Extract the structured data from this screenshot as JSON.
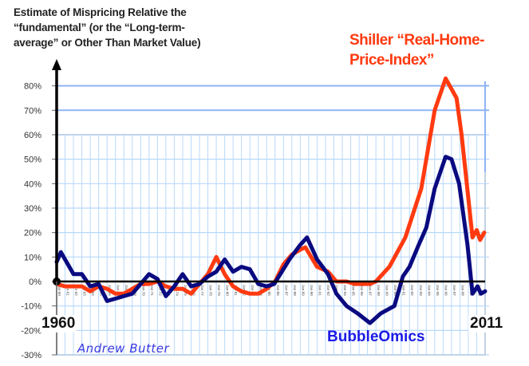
{
  "chart_data": {
    "type": "line",
    "title": "Estimate of Mispricing Relative the “fundamental” (or the “Long-term-average” or Other Than Market Value)",
    "title_lines": [
      "Estimate of Mispricing Relative the",
      "“fundamental” (or the “Long-term-",
      "average” or Other Than Market Value)"
    ],
    "xlabel": "",
    "ylabel": "",
    "x_start_label": "1960",
    "x_end_label": "2011",
    "xlim": [
      1960,
      2011
    ],
    "ylim": [
      -30,
      80
    ],
    "yticks": [
      -30,
      -20,
      -10,
      0,
      10,
      20,
      30,
      40,
      50,
      60,
      70,
      80
    ],
    "ytick_labels": [
      "-30%",
      "-20%",
      "-10%",
      "0%",
      "10%",
      "20%",
      "30%",
      "40%",
      "50%",
      "60%",
      "70%",
      "80%"
    ],
    "xtick_labels": [
      "Jan-60",
      "Jan-61",
      "Jan-62",
      "Jan-63",
      "Jan-64",
      "Jan-65",
      "Jan-66",
      "Jan-67",
      "Jan-68",
      "Jan-69",
      "Jan-70",
      "Jan-71",
      "Jan-72",
      "Jan-73",
      "Jan-74",
      "Jan-75",
      "Jan-76",
      "Jan-77",
      "Jan-78",
      "Jan-79",
      "Jan-80",
      "Jan-81",
      "Jan-82",
      "Jan-83",
      "Jan-84",
      "Jan-85",
      "Jan-86",
      "Jan-87",
      "Jan-88",
      "Jan-89",
      "Jan-90",
      "Jan-91",
      "Jan-92",
      "Jan-93",
      "Jan-94",
      "Jan-95",
      "Jan-96",
      "Jan-97",
      "Jan-98",
      "Jan-99",
      "Jan-00",
      "Jan-01",
      "Jan-02",
      "Jan-03",
      "Jan-04",
      "Jan-05",
      "Jan-06",
      "Jan-07",
      "Jan-08",
      "Jan-09",
      "Jan-10"
    ],
    "grid": true,
    "series": [
      {
        "name": "Shiller “Real-Home-Price-Index”",
        "legend_lines": [
          "Shiller “Real-Home-",
          "Price-Index”"
        ],
        "color": "#ff3a10",
        "x": [
          1960,
          1961,
          1962,
          1963,
          1964,
          1965,
          1966,
          1967,
          1968,
          1969,
          1970,
          1971,
          1972,
          1973,
          1974,
          1975,
          1976,
          1977,
          1978,
          1979,
          1980,
          1981,
          1982,
          1983,
          1984,
          1985,
          1986,
          1987,
          1988,
          1989,
          1989.6,
          1991,
          1992.3,
          1993.3,
          1994.5,
          1995.5,
          1997.3,
          1998,
          1999.6,
          2001.5,
          2003.4,
          2005,
          2006.3,
          2007.6,
          2008.2,
          2009.5,
          2010,
          2010.4,
          2010.9
        ],
        "y": [
          -1,
          -2,
          -2,
          -2,
          -4,
          -2,
          -3,
          -5,
          -5,
          -3,
          -1,
          -1,
          0,
          -2,
          -3,
          -3,
          -5,
          -1,
          3,
          10,
          3,
          -2,
          -4,
          -5,
          -5,
          -3,
          0,
          7,
          11,
          13,
          14,
          6,
          4,
          0,
          0,
          -1,
          -1,
          0,
          6,
          18,
          38,
          70,
          83,
          75,
          60,
          18,
          21,
          17,
          20
        ]
      },
      {
        "name": "BubbleOmics",
        "color": "#0a0a80",
        "x": [
          1960,
          1960.5,
          1962,
          1963,
          1964,
          1965,
          1966,
          1967,
          1968,
          1969,
          1970,
          1971,
          1972,
          1973,
          1974,
          1975,
          1976,
          1977,
          1978,
          1979,
          1980,
          1981,
          1982,
          1983,
          1984,
          1985,
          1985.9,
          1987.7,
          1989,
          1989.8,
          1991,
          1992.3,
          1993.3,
          1994.5,
          1995.8,
          1997.3,
          1998.6,
          2000.2,
          2001.2,
          2002,
          2003.1,
          2004,
          2005,
          2006.3,
          2007,
          2007.9,
          2008.9,
          2009.5,
          2010.1,
          2010.5,
          2011
        ],
        "y": [
          8,
          12,
          3,
          3,
          -2,
          -1,
          -8,
          -7,
          -6,
          -5,
          -1,
          3,
          1,
          -6,
          -2,
          3,
          -2,
          -1,
          2,
          4,
          9,
          4,
          6,
          5,
          -1,
          -2,
          -1,
          9,
          15,
          18,
          9,
          3,
          -5,
          -10,
          -13,
          -17,
          -13,
          -10,
          2,
          6,
          15,
          22,
          38,
          51,
          50,
          40,
          15,
          -5,
          -2,
          -5,
          -4
        ]
      }
    ],
    "legend": "top-right",
    "annotations": {
      "bubbleomics_label": "BubbleOmics",
      "author": "Andrew Butter"
    }
  }
}
